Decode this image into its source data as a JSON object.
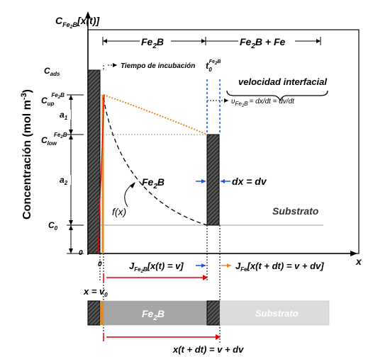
{
  "axes": {
    "y_label": "Concentración (mol m",
    "y_label_sup": "-3",
    "y_label_close": ")",
    "y_top_main": "C",
    "y_top_sub": "Fe",
    "y_top_sub2": "2",
    "y_top_sub3": "B",
    "y_top_arg": "[x(t)]",
    "x_axis": "x",
    "origin_y": "0",
    "origin_x": "0"
  },
  "y_levels": {
    "c_ads": "C",
    "c_ads_sub": "ads",
    "c_up": "C",
    "c_up_sub": "up",
    "c_up_sup": "Fe",
    "c_up_sup2": "2",
    "c_up_sup3": "B",
    "c_low": "C",
    "c_low_sub": "low",
    "c_low_sup": "Fe",
    "c_low_sup2": "2",
    "c_low_sup3": "B",
    "c0": "C",
    "c0_sub": "0",
    "a1": "a",
    "a1_sub": "1",
    "a2": "a",
    "a2_sub": "2"
  },
  "regions": {
    "fe2b": "Fe",
    "fe2b_sub": "2",
    "fe2b_end": "B",
    "fe2b_fe": "Fe",
    "fe2b_fe_sub": "2",
    "fe2b_fe_end": "B + Fe"
  },
  "annotations": {
    "incubation": "Tiempo de incubación",
    "t0": "t",
    "t0_sub": "0",
    "t0_sup": "Fe",
    "t0_sup2": "2",
    "t0_sup3": "B",
    "interface_velocity": "velocidad interfacial",
    "upsilon": "υ",
    "upsilon_sub": "Fe",
    "upsilon_sub2": "2",
    "upsilon_sub3": "B",
    "upsilon_eq": "= dx/dt = dv/dt",
    "fe2b_mid": "Fe",
    "fe2b_mid_sub": "2",
    "fe2b_mid_end": "B",
    "fx": "f(x)",
    "dx_dv": "dx = dv",
    "substrate": "Substrato"
  },
  "fluxes": {
    "j_fe2b": "J",
    "j_fe2b_sub": "Fe",
    "j_fe2b_sub2": "2",
    "j_fe2b_sub3": "B",
    "j_fe2b_arg": "[x(t) = v]",
    "j_fe": "J",
    "j_fe_sub": "Fe",
    "j_fe_arg": "[x(t + dt) = v + dv]"
  },
  "bottom": {
    "x_v0": "x = v",
    "x_v0_sub": "0",
    "bar_fe2b": "Fe",
    "bar_fe2b_sub": "2",
    "bar_fe2b_end": "B",
    "bar_substrate": "Substrato",
    "x_t_dt": "x(t + dt) = v + dv"
  },
  "colors": {
    "orange": "#e8871e",
    "red": "#e00000",
    "blue": "#1a4fd6",
    "grey_bar": "#a6a6a6",
    "light_bar": "#dcdcdc"
  }
}
